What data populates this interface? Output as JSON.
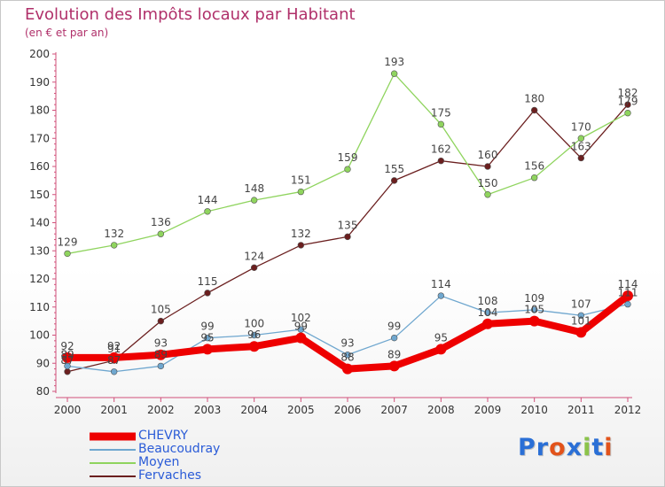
{
  "header": {
    "title": "Evolution des Impôts locaux par Habitant",
    "subtitle": "(en € et par an)"
  },
  "logo": {
    "text": "Proxiti",
    "letter_colors": [
      "#2a6fd6",
      "#2a6fd6",
      "#e2531b",
      "#2a6fd6",
      "#8bc34a",
      "#2a6fd6",
      "#e2531b"
    ]
  },
  "chart_data": {
    "type": "line",
    "title": "Evolution des Impôts locaux par Habitant",
    "subtitle": "(en € et par an)",
    "x": [
      "2000",
      "2001",
      "2002",
      "2003",
      "2004",
      "2005",
      "2006",
      "2007",
      "2008",
      "2009",
      "2010",
      "2011",
      "2012"
    ],
    "ylim": [
      80,
      200
    ],
    "yticks": [
      80,
      90,
      100,
      110,
      120,
      130,
      140,
      150,
      160,
      170,
      180,
      190,
      200
    ],
    "grid": false,
    "legend_position": "bottom-left",
    "series": [
      {
        "name": "CHEVRY",
        "color": "#ee0000",
        "values": [
          92,
          92,
          93,
          95,
          96,
          99,
          88,
          89,
          95,
          104,
          105,
          101,
          114
        ]
      },
      {
        "name": "Beaucoudray",
        "color": "#6fa7cf",
        "values": [
          89,
          87,
          89,
          99,
          100,
          102,
          93,
          99,
          114,
          108,
          109,
          107,
          111
        ]
      },
      {
        "name": "Moyen",
        "color": "#8fd45e",
        "values": [
          129,
          132,
          136,
          144,
          148,
          151,
          159,
          193,
          175,
          150,
          156,
          170,
          179
        ]
      },
      {
        "name": "Fervaches",
        "color": "#6b1f1f",
        "values": [
          87,
          91,
          105,
          115,
          124,
          132,
          135,
          155,
          162,
          160,
          180,
          163,
          182
        ]
      }
    ]
  }
}
